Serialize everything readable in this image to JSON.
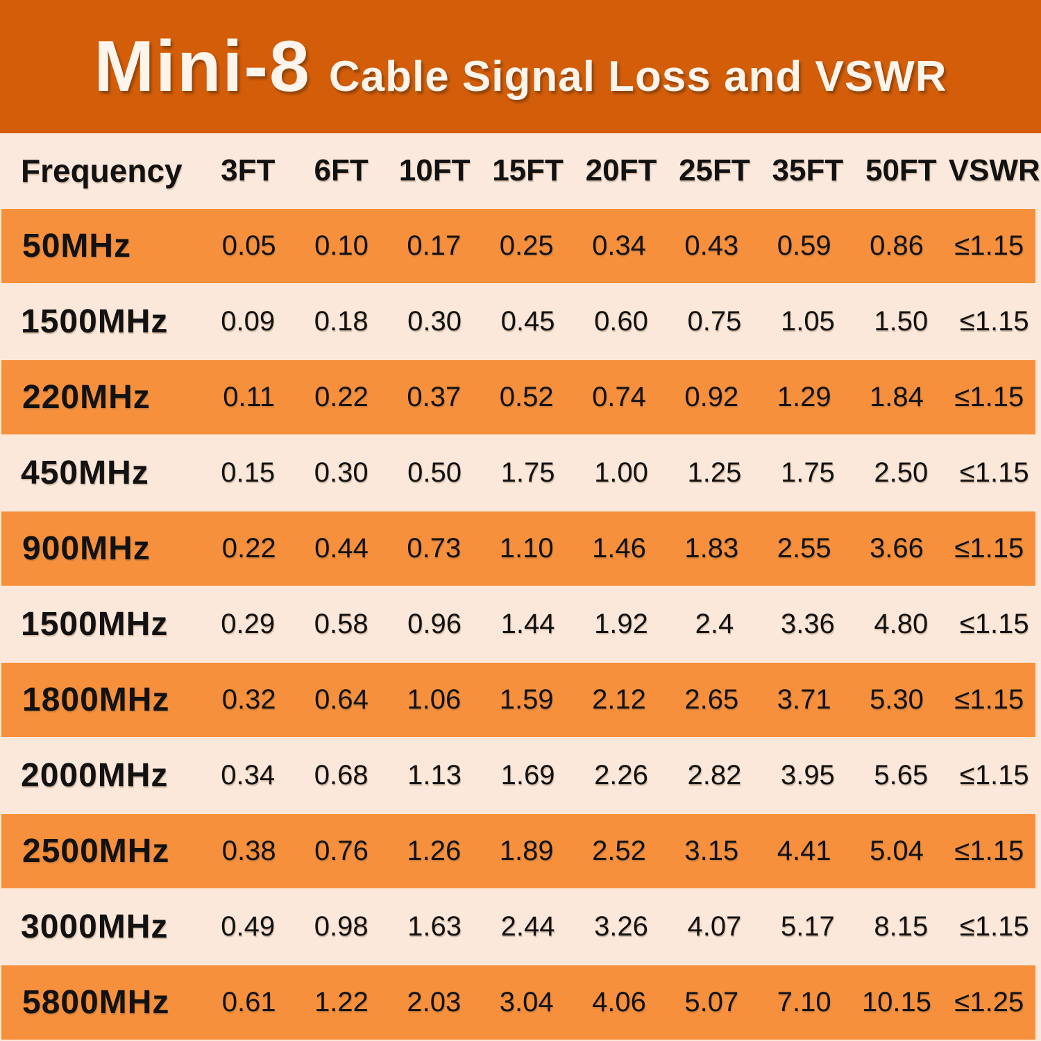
{
  "title": {
    "brand": "Mini-8",
    "subtitle": "Cable Signal Loss and VSWR"
  },
  "chart_data": {
    "type": "table",
    "title": "Mini-8 Cable Signal Loss and VSWR",
    "columns": [
      "Frequency",
      "3FT",
      "6FT",
      "10FT",
      "15FT",
      "20FT",
      "25FT",
      "35FT",
      "50FT",
      "VSWR"
    ],
    "rows": [
      {
        "frequency": "50MHz",
        "values": [
          "0.05",
          "0.10",
          "0.17",
          "0.25",
          "0.34",
          "0.43",
          "0.59",
          "0.86",
          "≤1.15"
        ]
      },
      {
        "frequency": "1500MHz",
        "values": [
          "0.09",
          "0.18",
          "0.30",
          "0.45",
          "0.60",
          "0.75",
          "1.05",
          "1.50",
          "≤1.15"
        ]
      },
      {
        "frequency": "220MHz",
        "values": [
          "0.11",
          "0.22",
          "0.37",
          "0.52",
          "0.74",
          "0.92",
          "1.29",
          "1.84",
          "≤1.15"
        ]
      },
      {
        "frequency": "450MHz",
        "values": [
          "0.15",
          "0.30",
          "0.50",
          "1.75",
          "1.00",
          "1.25",
          "1.75",
          "2.50",
          "≤1.15"
        ]
      },
      {
        "frequency": "900MHz",
        "values": [
          "0.22",
          "0.44",
          "0.73",
          "1.10",
          "1.46",
          "1.83",
          "2.55",
          "3.66",
          "≤1.15"
        ]
      },
      {
        "frequency": "1500MHz",
        "values": [
          "0.29",
          "0.58",
          "0.96",
          "1.44",
          "1.92",
          "2.4",
          "3.36",
          "4.80",
          "≤1.15"
        ]
      },
      {
        "frequency": "1800MHz",
        "values": [
          "0.32",
          "0.64",
          "1.06",
          "1.59",
          "2.12",
          "2.65",
          "3.71",
          "5.30",
          "≤1.15"
        ]
      },
      {
        "frequency": "2000MHz",
        "values": [
          "0.34",
          "0.68",
          "1.13",
          "1.69",
          "2.26",
          "2.82",
          "3.95",
          "5.65",
          "≤1.15"
        ]
      },
      {
        "frequency": "2500MHz",
        "values": [
          "0.38",
          "0.76",
          "1.26",
          "1.89",
          "2.52",
          "3.15",
          "4.41",
          "5.04",
          "≤1.15"
        ]
      },
      {
        "frequency": "3000MHz",
        "values": [
          "0.49",
          "0.98",
          "1.63",
          "2.44",
          "3.26",
          "4.07",
          "5.17",
          "8.15",
          "≤1.15"
        ]
      },
      {
        "frequency": "5800MHz",
        "values": [
          "0.61",
          "1.22",
          "2.03",
          "3.04",
          "4.06",
          "5.07",
          "7.10",
          "10.15",
          "≤1.25"
        ]
      }
    ]
  },
  "colors": {
    "banner_background": "#d35d08",
    "row_orange": "#f7903c",
    "row_peach": "#fce8da",
    "title_text": "#fdf4ec",
    "table_text": "#121212"
  }
}
